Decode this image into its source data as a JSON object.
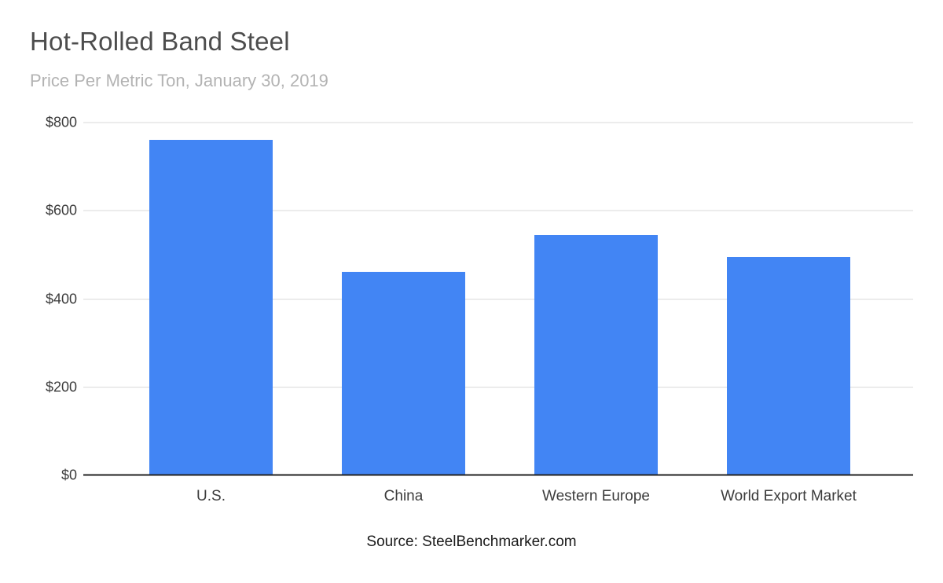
{
  "header": {
    "title": "Hot-Rolled Band Steel",
    "subtitle": "Price Per Metric Ton, January 30, 2019"
  },
  "footer": {
    "source": "Source: SteelBenchmarker.com"
  },
  "colors": {
    "bar": "#4285f4",
    "gridline": "#d9d9d9",
    "baseline": "#212121",
    "title_text": "#4d4d4d",
    "subtitle_text": "#b3b3b3",
    "axis_text": "#3c3c3c"
  },
  "chart_data": {
    "type": "bar",
    "title": "Hot-Rolled Band Steel",
    "subtitle": "Price Per Metric Ton, January 30, 2019",
    "categories": [
      "U.S.",
      "China",
      "Western Europe",
      "World Export Market"
    ],
    "values": [
      760,
      462,
      545,
      495
    ],
    "xlabel": "",
    "ylabel": "",
    "ylim": [
      0,
      800
    ],
    "yticks": [
      {
        "value": 0,
        "label": "$0"
      },
      {
        "value": 200,
        "label": "$200"
      },
      {
        "value": 400,
        "label": "$400"
      },
      {
        "value": 600,
        "label": "$600"
      },
      {
        "value": 800,
        "label": "$800"
      }
    ],
    "grid": true,
    "legend": false,
    "bar_color": "#4285f4",
    "source": "Source: SteelBenchmarker.com"
  }
}
